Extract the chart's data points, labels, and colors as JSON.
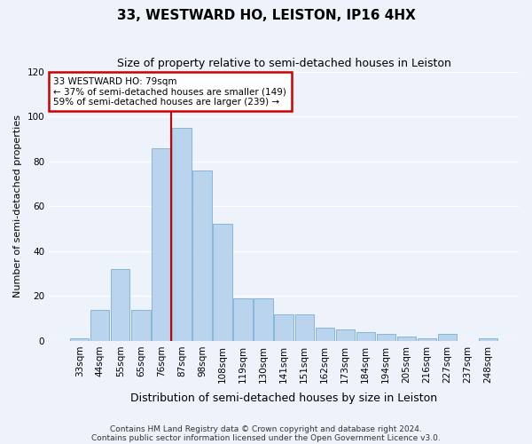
{
  "title": "33, WESTWARD HO, LEISTON, IP16 4HX",
  "subtitle": "Size of property relative to semi-detached houses in Leiston",
  "xlabel": "Distribution of semi-detached houses by size in Leiston",
  "ylabel": "Number of semi-detached properties",
  "categories": [
    "33sqm",
    "44sqm",
    "55sqm",
    "65sqm",
    "76sqm",
    "87sqm",
    "98sqm",
    "108sqm",
    "119sqm",
    "130sqm",
    "141sqm",
    "151sqm",
    "162sqm",
    "173sqm",
    "184sqm",
    "194sqm",
    "205sqm",
    "216sqm",
    "227sqm",
    "237sqm",
    "248sqm"
  ],
  "values": [
    1,
    14,
    32,
    14,
    86,
    95,
    76,
    52,
    19,
    19,
    12,
    12,
    6,
    5,
    4,
    3,
    2,
    1,
    3,
    0,
    1
  ],
  "bar_color": "#bad4ee",
  "bar_edge_color": "#7bafd4",
  "marker_bin_index": 5,
  "marker_line_color": "#cc0000",
  "annotation_text": "33 WESTWARD HO: 79sqm\n← 37% of semi-detached houses are smaller (149)\n59% of semi-detached houses are larger (239) →",
  "annotation_box_color": "#ffffff",
  "annotation_box_edge_color": "#cc0000",
  "ylim": [
    0,
    120
  ],
  "yticks": [
    0,
    20,
    40,
    60,
    80,
    100,
    120
  ],
  "footer1": "Contains HM Land Registry data © Crown copyright and database right 2024.",
  "footer2": "Contains public sector information licensed under the Open Government Licence v3.0.",
  "background_color": "#edf2fb",
  "grid_color": "#ffffff",
  "title_fontsize": 11,
  "subtitle_fontsize": 9,
  "ylabel_fontsize": 8,
  "xlabel_fontsize": 9,
  "tick_fontsize": 7.5,
  "footer_fontsize": 6.5
}
